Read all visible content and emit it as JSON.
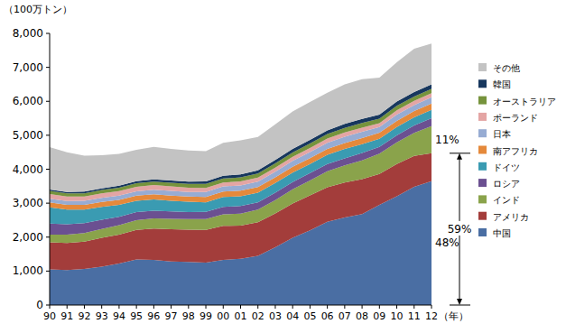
{
  "chart_data": {
    "type": "area",
    "stacked": true,
    "y_label": "（100万トン）",
    "x_label": "（年）",
    "categories": [
      "90",
      "91",
      "92",
      "93",
      "94",
      "95",
      "96",
      "97",
      "98",
      "99",
      "00",
      "01",
      "02",
      "03",
      "04",
      "05",
      "06",
      "07",
      "08",
      "09",
      "10",
      "11",
      "12"
    ],
    "ylim": [
      0,
      8000
    ],
    "yticks": [
      0,
      {
        "value": 1000,
        "label": "1,000"
      },
      {
        "value": 2000,
        "label": "2,000"
      },
      {
        "value": 3000,
        "label": "3,000"
      },
      {
        "value": 4000,
        "label": "4,000"
      },
      {
        "value": 5000,
        "label": "5,000"
      },
      {
        "value": 6000,
        "label": "6,000"
      },
      {
        "value": 7000,
        "label": "7,000"
      },
      {
        "value": 8000,
        "label": "8,000"
      }
    ],
    "grid": false,
    "legend": "right",
    "series": [
      {
        "name": "中国",
        "color": "#4a6ea3",
        "values": [
          1050,
          1030,
          1060,
          1130,
          1220,
          1340,
          1330,
          1280,
          1270,
          1250,
          1330,
          1360,
          1450,
          1700,
          1980,
          2200,
          2450,
          2580,
          2680,
          2950,
          3200,
          3480,
          3650
        ]
      },
      {
        "name": "アメリカ",
        "color": "#a33d3b",
        "values": [
          800,
          800,
          810,
          850,
          850,
          870,
          920,
          950,
          950,
          960,
          1000,
          980,
          990,
          1000,
          1010,
          1030,
          1020,
          1030,
          1030,
          910,
          950,
          910,
          820
        ]
      },
      {
        "name": "インド",
        "color": "#8aa34b",
        "values": [
          220,
          240,
          250,
          260,
          280,
          290,
          300,
          310,
          310,
          320,
          340,
          350,
          370,
          390,
          420,
          440,
          470,
          500,
          550,
          600,
          640,
          680,
          800
        ]
      },
      {
        "name": "ロシア",
        "color": "#6b5091",
        "values": [
          330,
          310,
          290,
          270,
          250,
          240,
          230,
          220,
          210,
          215,
          220,
          225,
          215,
          220,
          210,
          215,
          215,
          210,
          220,
          200,
          210,
          220,
          230
        ]
      },
      {
        "name": "ドイツ",
        "color": "#3a9bb2",
        "values": [
          480,
          430,
          400,
          380,
          350,
          330,
          330,
          310,
          300,
          280,
          290,
          290,
          285,
          285,
          280,
          270,
          270,
          275,
          260,
          235,
          240,
          240,
          245
        ]
      },
      {
        "name": "南アフリカ",
        "color": "#e5893b",
        "values": [
          140,
          140,
          142,
          145,
          148,
          150,
          152,
          155,
          157,
          160,
          162,
          164,
          166,
          168,
          170,
          172,
          175,
          178,
          180,
          182,
          185,
          185,
          188
        ]
      },
      {
        "name": "日本",
        "color": "#97acd3",
        "values": [
          110,
          110,
          115,
          120,
          125,
          130,
          135,
          140,
          135,
          145,
          150,
          155,
          160,
          165,
          175,
          180,
          180,
          185,
          185,
          165,
          185,
          175,
          185
        ]
      },
      {
        "name": "ポーランド",
        "color": "#e4a5a4",
        "values": [
          140,
          135,
          130,
          135,
          135,
          135,
          135,
          130,
          125,
          120,
          115,
          115,
          115,
          120,
          120,
          120,
          125,
          125,
          120,
          115,
          125,
          125,
          120
        ]
      },
      {
        "name": "オーストラリア",
        "color": "#76933c",
        "values": [
          90,
          92,
          94,
          96,
          98,
          100,
          103,
          106,
          110,
          115,
          118,
          120,
          122,
          125,
          128,
          130,
          130,
          135,
          135,
          130,
          130,
          125,
          125
        ]
      },
      {
        "name": "韓国",
        "color": "#17375e",
        "values": [
          42,
          45,
          48,
          52,
          56,
          60,
          65,
          70,
          70,
          75,
          85,
          90,
          95,
          100,
          105,
          108,
          110,
          115,
          120,
          120,
          130,
          135,
          135
        ]
      },
      {
        "name": "その他",
        "color": "#c3c3c3",
        "values": [
          1248,
          1168,
          1061,
          972,
          938,
          925,
          960,
          929,
          913,
          890,
          970,
          1001,
          982,
          1047,
          1102,
          1115,
          1105,
          1167,
          1170,
          1093,
          1155,
          1275,
          1202
        ]
      }
    ],
    "annotations": [
      "11%",
      "59%",
      "48%"
    ]
  }
}
